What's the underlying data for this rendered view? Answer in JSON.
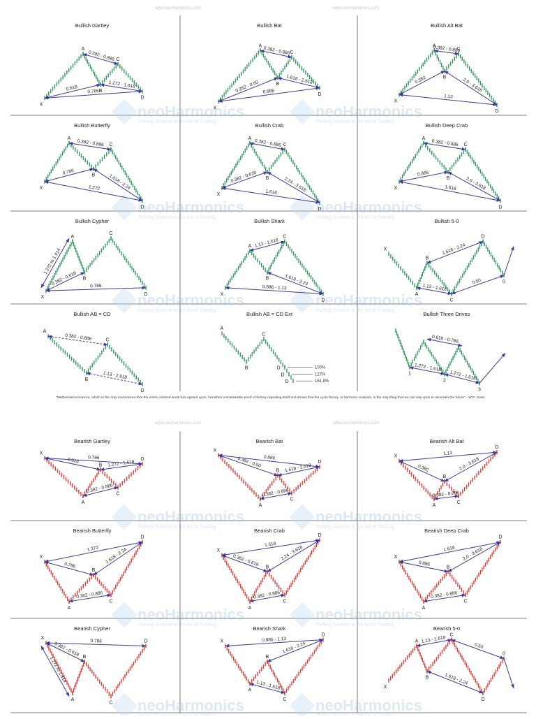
{
  "header_url": "www.neoHarmonics.com",
  "watermark": {
    "name": "neoHarmonics",
    "tagline": "Putting Science in the Art of Trading"
  },
  "bullish": {
    "cells": [
      {
        "title": "Bullish Gartley",
        "points": [
          "X",
          "A",
          "B",
          "C",
          "D"
        ],
        "ratios": [
          "0.382 - 0.886",
          "0.618",
          "1.272 - 1.618",
          "0.786"
        ]
      },
      {
        "title": "Bullish Bat",
        "points": [
          "X",
          "A",
          "B",
          "C",
          "D"
        ],
        "ratios": [
          "0.382 - 0.886",
          "0.382 - 0.50",
          "1.618 - 2.618",
          "0.886"
        ]
      },
      {
        "title": "Bullish Alt Bat",
        "points": [
          "X",
          "A",
          "B",
          "C",
          "D"
        ],
        "ratios": [
          "0.382 - 0.886",
          "0.382",
          "2.0 - 3.618",
          "1.13"
        ]
      },
      {
        "title": "Bullish Butterfly",
        "points": [
          "X",
          "A",
          "B",
          "C",
          "D"
        ],
        "ratios": [
          "0.382 - 0.886",
          "0.786",
          "1.618 - 2.24",
          "1.272"
        ]
      },
      {
        "title": "Bullish Crab",
        "points": [
          "X",
          "A",
          "B",
          "C",
          "D"
        ],
        "ratios": [
          "0.382 - 0.886",
          "0.382 - 0.618",
          "2.24 - 3.618",
          "1.618"
        ]
      },
      {
        "title": "Bullish Deep Crab",
        "points": [
          "X",
          "A",
          "B",
          "C",
          "D"
        ],
        "ratios": [
          "0.382 - 0.886",
          "0.886",
          "2.0 - 3.618",
          "1.618"
        ]
      },
      {
        "title": "Bullish Cypher",
        "points": [
          "X",
          "A",
          "B",
          "C",
          "D"
        ],
        "ratios": [
          "1.272 to 1.414",
          "0.382 - 0.618",
          "0.786"
        ]
      },
      {
        "title": "Bullish Shark",
        "points": [
          "X",
          "A",
          "B",
          "C",
          "D"
        ],
        "ratios": [
          "1.13 - 1.618",
          "1.618 - 2.24",
          "0.886 - 1.13"
        ]
      },
      {
        "title": "Bullish 5-0",
        "points": [
          "X",
          "A",
          "B",
          "C",
          "D",
          "0"
        ],
        "ratios": [
          "1.618 - 2.24",
          "1.13 - 1.618",
          "0.50"
        ]
      },
      {
        "title": "Bullish AB = CD",
        "points": [
          "A",
          "B",
          "C",
          "D"
        ],
        "ratios": [
          "0.382 - 0.886",
          "1.13 - 2.618"
        ]
      },
      {
        "title": "Bullish AB = CD Ext",
        "points": [
          "A",
          "B",
          "C",
          "D",
          "D",
          "D"
        ],
        "ratios": [],
        "levels": [
          "100%",
          "127%",
          "161.8%"
        ]
      },
      {
        "title": "Bullish Three Drives",
        "points": [
          "1",
          "2",
          "3"
        ],
        "ratios": [
          "0.618 - 0.786",
          "1.272 - 1.618",
          "1.272 - 1.618"
        ]
      }
    ]
  },
  "quote": "\"Mathematical science, which is the only real science that the entire civilized world has agreed upon, furnishes unmistakable proof of history repeating itself and shows that the cycle theory, or harmonic analysis, is the only thing that we can rely upon to ascertain the future\" - W.D. Gann",
  "bearish": {
    "cells": [
      {
        "title": "Bearish Gartley",
        "points": [
          "X",
          "A",
          "B",
          "C",
          "D"
        ],
        "ratios": [
          "0.382 - 0.886",
          "0.618",
          "1.272 - 1.618",
          "0.786"
        ]
      },
      {
        "title": "Bearish Bat",
        "points": [
          "X",
          "A",
          "B",
          "C",
          "D"
        ],
        "ratios": [
          "0.382 - 0.886",
          "0.382 - 0.50",
          "1.618 - 2.618",
          "0.886"
        ]
      },
      {
        "title": "Bearish Alt Bat",
        "points": [
          "X",
          "A",
          "B",
          "C",
          "D"
        ],
        "ratios": [
          "0.382 - 0.886",
          "0.382",
          "2.0 - 3.618",
          "1.13"
        ]
      },
      {
        "title": "Bearish Butterfly",
        "points": [
          "X",
          "A",
          "B",
          "C",
          "D"
        ],
        "ratios": [
          "0.382 - 0.886",
          "0.786",
          "1.618 - 2.24",
          "1.272"
        ]
      },
      {
        "title": "Bearish Crab",
        "points": [
          "X",
          "A",
          "B",
          "C",
          "D"
        ],
        "ratios": [
          "0.382 - 0.886",
          "0.382 - 0.618",
          "2.24 - 3.618",
          "1.618"
        ]
      },
      {
        "title": "Bearish Deep Crab",
        "points": [
          "X",
          "A",
          "B",
          "C",
          "D"
        ],
        "ratios": [
          "0.382 - 0.886",
          "0.886",
          "2.0 - 3.618",
          "1.618"
        ]
      },
      {
        "title": "Bearish Cypher",
        "points": [
          "X",
          "A",
          "B",
          "C",
          "D"
        ],
        "ratios": [
          "1.272 to 1.414",
          "0.382 - 0.618",
          "0.786"
        ]
      },
      {
        "title": "Bearish Shark",
        "points": [
          "X",
          "A",
          "B",
          "C",
          "D"
        ],
        "ratios": [
          "1.13 - 1.618",
          "1.618 - 2.24",
          "0.886 - 1.13"
        ]
      },
      {
        "title": "Bearish 5-0",
        "points": [
          "X",
          "A",
          "B",
          "C",
          "D",
          "0"
        ],
        "ratios": [
          "1.618 - 2.24",
          "1.13 - 1.618",
          "0.50"
        ]
      }
    ]
  }
}
